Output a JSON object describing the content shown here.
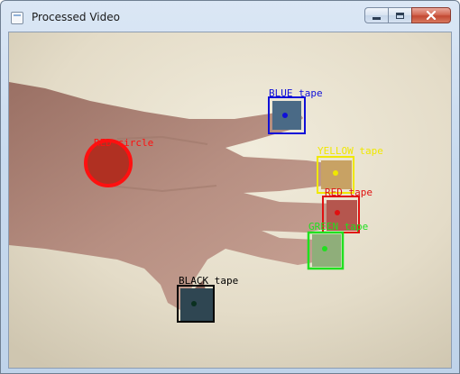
{
  "window": {
    "title": "Processed Video",
    "buttons": {
      "minimize": "minimize",
      "maximize": "maximize",
      "close": "close"
    }
  },
  "video": {
    "labels": {
      "blue_tape": "BLUE tape",
      "yellow_tape": "YELLOW tape",
      "red_tape": "RED tape",
      "green_tape": "GREEN tape",
      "black_tape": "BLACK tape",
      "red_circle": "RED circle"
    },
    "colors": {
      "blue": "#1010d8",
      "yellow": "#f0e800",
      "red": "#e01010",
      "green": "#20e020",
      "black": "#000000",
      "background": "#e6dfcd",
      "skin": "#b3877a"
    }
  }
}
